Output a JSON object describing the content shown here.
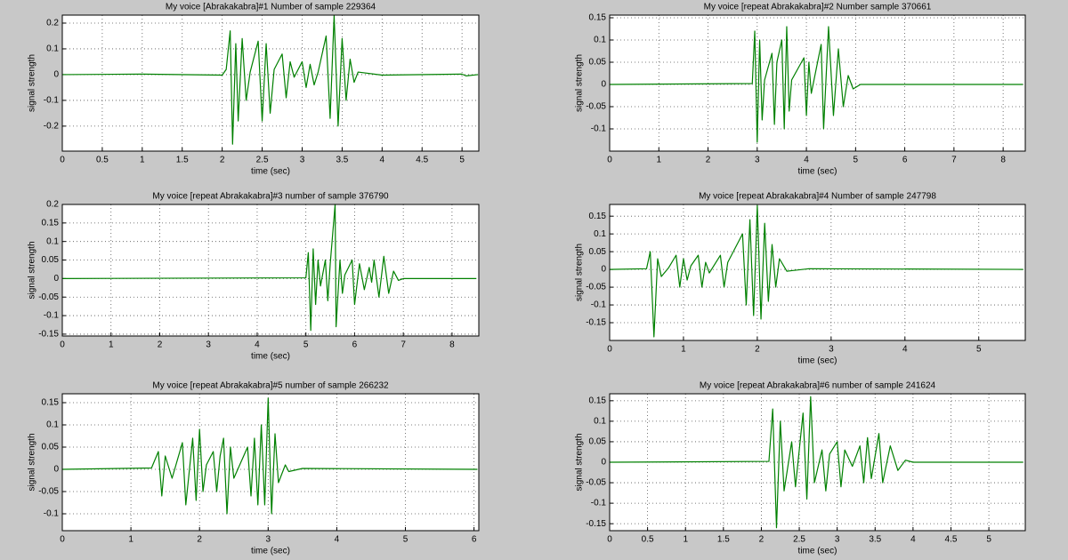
{
  "chart_data": [
    {
      "type": "line",
      "title": "My voice [Abrakakabra]#1 Number of sample 229364",
      "x_label": "time (sec)",
      "y_label": "signal strength",
      "grid": true,
      "x": [
        0,
        1,
        2.0,
        2.05,
        2.1,
        2.13,
        2.17,
        2.2,
        2.25,
        2.3,
        2.35,
        2.45,
        2.5,
        2.55,
        2.6,
        2.65,
        2.75,
        2.8,
        2.85,
        2.9,
        3.0,
        3.05,
        3.1,
        3.15,
        3.2,
        3.3,
        3.35,
        3.4,
        3.45,
        3.5,
        3.55,
        3.6,
        3.65,
        3.7,
        4,
        5,
        5.05,
        5.2
      ],
      "series": [
        {
          "color": "#008000",
          "values": [
            0,
            0.002,
            -0.002,
            0.02,
            0.17,
            -0.27,
            0.12,
            -0.18,
            0.14,
            -0.1,
            0.01,
            0.13,
            -0.18,
            0.12,
            -0.15,
            0.02,
            0.08,
            -0.09,
            0.05,
            -0.01,
            0.05,
            -0.05,
            0.04,
            -0.04,
            0.01,
            0.15,
            -0.17,
            0.23,
            -0.2,
            0.14,
            -0.1,
            0.06,
            -0.03,
            0.01,
            -0.002,
            0.002,
            -0.005,
            0
          ]
        }
      ],
      "xlim": [
        0,
        5.21
      ],
      "xticks": [
        0,
        0.5,
        1,
        1.5,
        2,
        2.5,
        3,
        3.5,
        4,
        4.5,
        5
      ],
      "ylim": [
        -0.297,
        0.231
      ],
      "yticks": [
        -0.2,
        -0.1,
        0,
        0.1,
        0.2
      ]
    },
    {
      "type": "line",
      "title": "My voice [repeat Abrakakabra]#2 Number sample 370661",
      "x_label": "time (sec)",
      "y_label": "signal strength",
      "grid": true,
      "x": [
        0,
        2.9,
        2.95,
        3.0,
        3.05,
        3.1,
        3.15,
        3.3,
        3.35,
        3.4,
        3.5,
        3.55,
        3.6,
        3.65,
        3.7,
        3.95,
        4.0,
        4.05,
        4.1,
        4.3,
        4.35,
        4.45,
        4.55,
        4.65,
        4.75,
        4.85,
        4.95,
        5.1,
        8.4
      ],
      "series": [
        {
          "color": "#008000",
          "values": [
            0,
            0.002,
            0.12,
            -0.13,
            0.1,
            -0.08,
            0.01,
            0.07,
            -0.09,
            0.05,
            0.1,
            -0.1,
            0.13,
            -0.06,
            0.01,
            0.06,
            -0.07,
            0.05,
            -0.02,
            0.09,
            -0.1,
            0.13,
            -0.07,
            0.08,
            -0.05,
            0.02,
            -0.01,
            0,
            0
          ]
        }
      ],
      "xlim": [
        0,
        8.45
      ],
      "xticks": [
        0,
        1,
        2,
        3,
        4,
        5,
        6,
        7,
        8
      ],
      "ylim": [
        -0.15,
        0.156
      ],
      "yticks": [
        -0.1,
        -0.05,
        0,
        0.05,
        0.1,
        0.15
      ]
    },
    {
      "type": "line",
      "title": "My voice [repeat Abrakakabra]#3 number of sample 376790",
      "x_label": "time (sec)",
      "y_label": "signal strength",
      "grid": true,
      "x": [
        0,
        5.0,
        5.05,
        5.1,
        5.15,
        5.2,
        5.25,
        5.3,
        5.4,
        5.45,
        5.5,
        5.6,
        5.62,
        5.7,
        5.75,
        5.8,
        5.95,
        6.0,
        6.1,
        6.2,
        6.3,
        6.35,
        6.4,
        6.5,
        6.6,
        6.7,
        6.8,
        6.9,
        7,
        8.5
      ],
      "series": [
        {
          "color": "#008000",
          "values": [
            0,
            0.002,
            0.07,
            -0.14,
            0.08,
            -0.07,
            0.05,
            -0.02,
            0.05,
            -0.06,
            0.04,
            0.2,
            -0.13,
            0.05,
            -0.04,
            0.01,
            0.05,
            -0.07,
            0.04,
            -0.03,
            0.03,
            -0.01,
            0.05,
            -0.05,
            0.06,
            -0.04,
            0.02,
            -0.005,
            0,
            0
          ]
        }
      ],
      "xlim": [
        0,
        8.55
      ],
      "xticks": [
        0,
        1,
        2,
        3,
        4,
        5,
        6,
        7,
        8
      ],
      "ylim": [
        -0.155,
        0.2
      ],
      "yticks": [
        -0.15,
        -0.1,
        -0.05,
        0,
        0.05,
        0.1,
        0.15,
        0.2
      ]
    },
    {
      "type": "line",
      "title": "My voice [repeat Abrakakabra]#4 Number of sample 247798",
      "x_label": "time (sec)",
      "y_label": "signal strength",
      "grid": true,
      "x": [
        0,
        0.5,
        0.55,
        0.6,
        0.65,
        0.7,
        0.8,
        0.9,
        0.95,
        1.0,
        1.05,
        1.1,
        1.2,
        1.25,
        1.3,
        1.35,
        1.5,
        1.55,
        1.6,
        1.8,
        1.85,
        1.9,
        1.95,
        2.0,
        2.05,
        2.1,
        2.15,
        2.2,
        2.25,
        2.3,
        2.4,
        2.7,
        5.6
      ],
      "series": [
        {
          "color": "#008000",
          "values": [
            0,
            0.002,
            0.05,
            -0.19,
            0.03,
            -0.02,
            0.005,
            0.04,
            -0.05,
            0.03,
            -0.03,
            0.01,
            0.04,
            -0.05,
            0.02,
            -0.01,
            0.04,
            -0.05,
            0.02,
            0.1,
            -0.1,
            0.14,
            -0.13,
            0.18,
            -0.14,
            0.13,
            -0.09,
            0.07,
            -0.05,
            0.03,
            -0.005,
            0.002,
            0
          ]
        }
      ],
      "xlim": [
        0,
        5.63
      ],
      "xticks": [
        0,
        1,
        2,
        3,
        4,
        5
      ],
      "ylim": [
        -0.2,
        0.183
      ],
      "yticks": [
        -0.15,
        -0.1,
        -0.05,
        0,
        0.05,
        0.1,
        0.15
      ]
    },
    {
      "type": "line",
      "title": "My voice [repeat Abrakakabra]#5 number of sample 266232",
      "x_label": "time (sec)",
      "y_label": "signal strength",
      "grid": true,
      "x": [
        0,
        1.3,
        1.4,
        1.45,
        1.5,
        1.6,
        1.75,
        1.8,
        1.9,
        1.95,
        2.0,
        2.05,
        2.1,
        2.2,
        2.25,
        2.3,
        2.35,
        2.4,
        2.45,
        2.5,
        2.7,
        2.75,
        2.8,
        2.85,
        2.9,
        2.95,
        3.0,
        3.05,
        3.1,
        3.15,
        3.25,
        3.3,
        3.5,
        6.05
      ],
      "series": [
        {
          "color": "#008000",
          "values": [
            0,
            0.003,
            0.04,
            -0.06,
            0.03,
            -0.02,
            0.06,
            -0.08,
            0.07,
            -0.07,
            0.09,
            -0.05,
            0.01,
            0.04,
            -0.05,
            0.03,
            0.07,
            -0.1,
            0.05,
            -0.02,
            0.05,
            -0.06,
            0.07,
            -0.08,
            0.1,
            -0.08,
            0.16,
            -0.1,
            0.08,
            -0.03,
            0.01,
            -0.005,
            0.002,
            0
          ]
        }
      ],
      "xlim": [
        0,
        6.07
      ],
      "xticks": [
        0,
        1,
        2,
        3,
        4,
        5,
        6
      ],
      "ylim": [
        -0.138,
        0.17
      ],
      "yticks": [
        -0.1,
        -0.05,
        0,
        0.05,
        0.1,
        0.15
      ]
    },
    {
      "type": "line",
      "title": "My voice [repeat Abrakakabra]#6 number of sample 241624",
      "x_label": "time (sec)",
      "y_label": "signal strength",
      "grid": true,
      "x": [
        0,
        2.1,
        2.15,
        2.2,
        2.25,
        2.3,
        2.4,
        2.45,
        2.5,
        2.55,
        2.6,
        2.65,
        2.7,
        2.8,
        2.85,
        2.9,
        3.0,
        3.05,
        3.1,
        3.2,
        3.3,
        3.35,
        3.4,
        3.45,
        3.55,
        3.6,
        3.7,
        3.8,
        3.9,
        4.0,
        5.45
      ],
      "series": [
        {
          "color": "#008000",
          "values": [
            0,
            0.002,
            0.13,
            -0.16,
            0.1,
            -0.07,
            0.05,
            -0.06,
            0.03,
            0.12,
            -0.09,
            0.16,
            -0.05,
            0.03,
            -0.07,
            0.02,
            0.05,
            -0.06,
            0.03,
            -0.01,
            0.04,
            -0.05,
            0.06,
            -0.04,
            0.07,
            -0.05,
            0.04,
            -0.02,
            0.005,
            0,
            0
          ]
        }
      ],
      "xlim": [
        0,
        5.48
      ],
      "xticks": [
        0,
        0.5,
        1,
        1.5,
        2,
        2.5,
        3,
        3.5,
        4,
        4.5,
        5
      ],
      "ylim": [
        -0.167,
        0.167
      ],
      "yticks": [
        -0.15,
        -0.1,
        -0.05,
        0,
        0.05,
        0.1,
        0.15
      ]
    }
  ]
}
